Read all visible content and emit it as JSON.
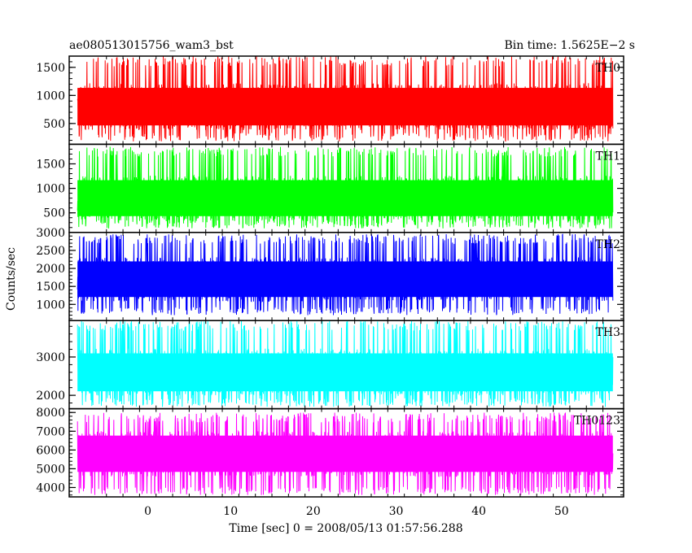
{
  "header": {
    "title": "ae080513015756_wam3_bst",
    "bin_time": "Bin time: 1.5625E−2 s"
  },
  "chart_data": {
    "type": "line",
    "title": "ae080513015756_wam3_bst",
    "xlabel": "Time [sec] 0 = 2008/05/13 01:57:56.288",
    "ylabel": "Counts/sec",
    "xlim": [
      -9.5,
      57.5
    ],
    "x_range": [
      -8.5,
      56.2
    ],
    "x_ticks": [
      0,
      10,
      20,
      30,
      40,
      50
    ],
    "x_tick_labels": [
      "0",
      "10",
      "20",
      "30",
      "40",
      "50"
    ],
    "bin_time_s": 0.015625,
    "panels": [
      {
        "name": "TH0",
        "color": "#ff0000",
        "ylim": [
          130,
          1700
        ],
        "yticks": [
          500,
          1000,
          1500
        ],
        "ytick_labels": [
          "500",
          "1000",
          "1500"
        ],
        "mean": 800,
        "low": 180,
        "high": 1700
      },
      {
        "name": "TH1",
        "color": "#00ff00",
        "ylim": [
          100,
          1900
        ],
        "yticks": [
          500,
          1000,
          1500
        ],
        "ytick_labels": [
          "500",
          "1000",
          "1500"
        ],
        "mean": 800,
        "low": 180,
        "high": 1850
      },
      {
        "name": "TH2",
        "color": "#0000ff",
        "ylim": [
          550,
          3000
        ],
        "yticks": [
          1000,
          1500,
          2000,
          2500,
          3000
        ],
        "ytick_labels": [
          "1000",
          "1500",
          "2000",
          "2500",
          "3000"
        ],
        "mean": 1700,
        "low": 700,
        "high": 2950
      },
      {
        "name": "TH3",
        "color": "#00ffff",
        "ylim": [
          1650,
          3950
        ],
        "yticks": [
          2000,
          3000
        ],
        "ytick_labels": [
          "2000",
          "3000"
        ],
        "mean": 2600,
        "low": 1700,
        "high": 3950
      },
      {
        "name": "TH0123",
        "color": "#ff00ff",
        "ylim": [
          3500,
          8200
        ],
        "yticks": [
          4000,
          5000,
          6000,
          7000,
          8000
        ],
        "ytick_labels": [
          "4000",
          "5000",
          "6000",
          "7000",
          "8000"
        ],
        "mean": 5800,
        "low": 3600,
        "high": 8000
      }
    ]
  }
}
